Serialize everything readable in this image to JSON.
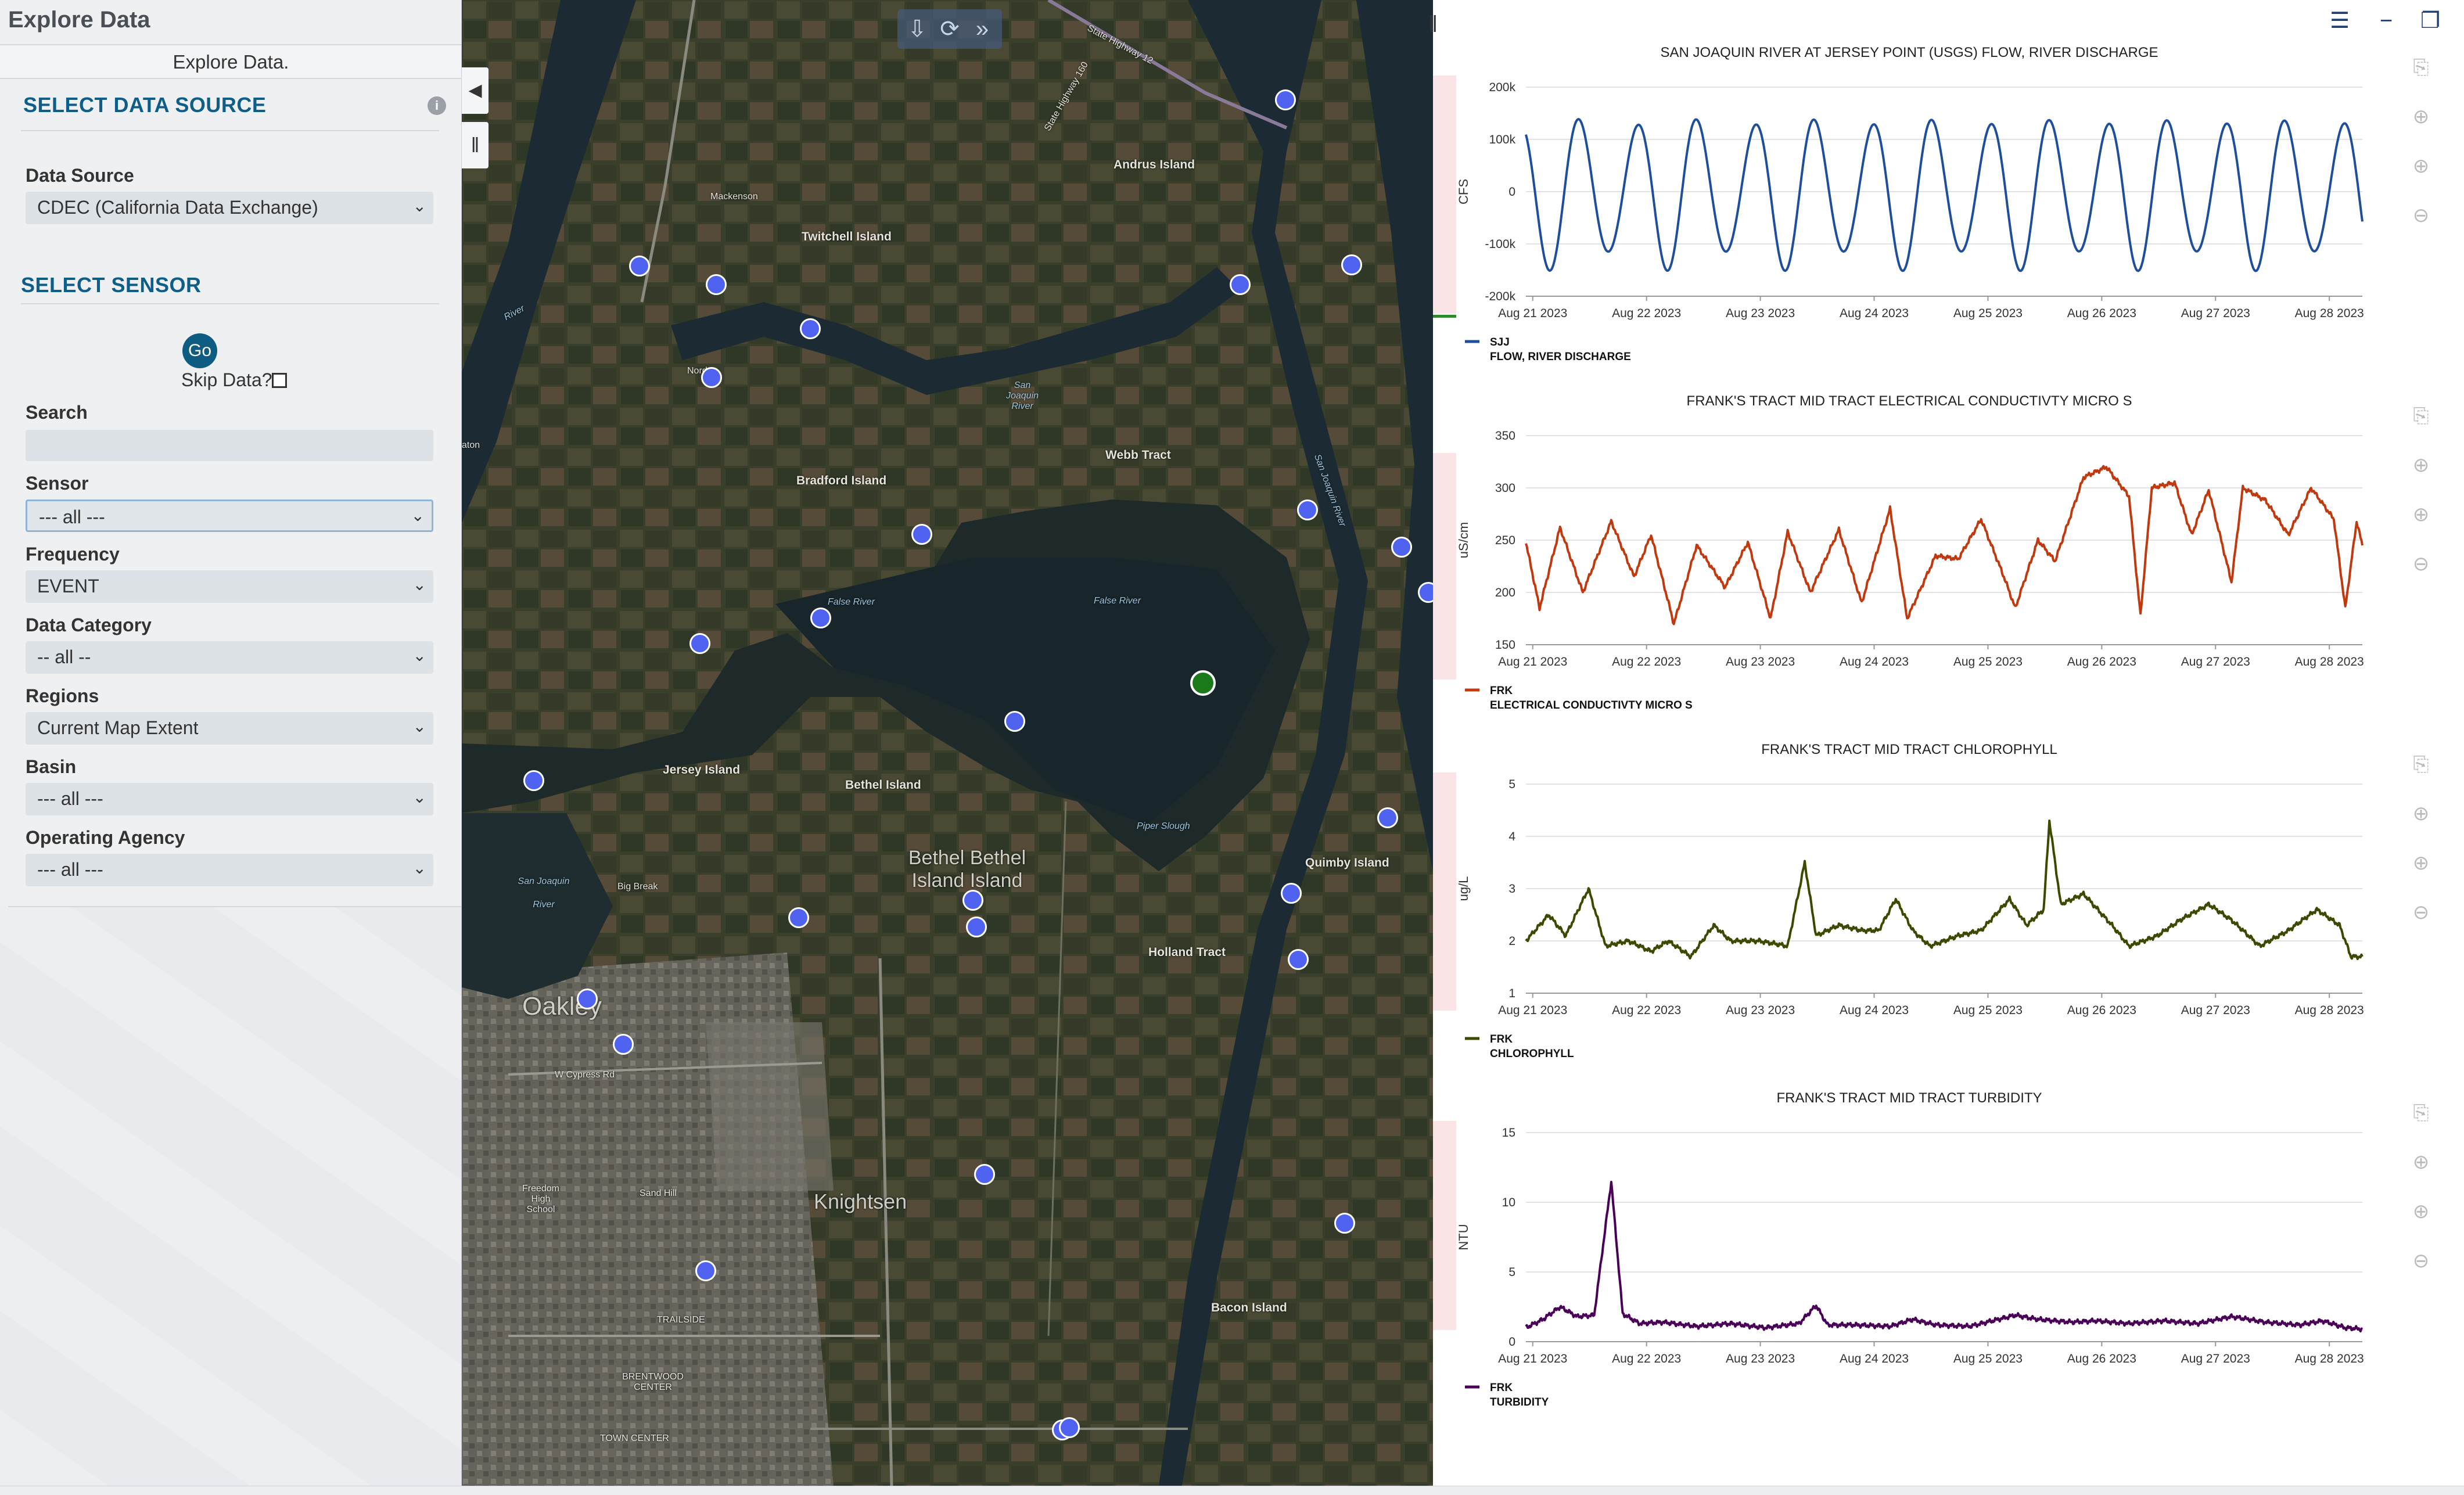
{
  "app": {
    "title": "Explore Data",
    "subtitle": "Explore Data."
  },
  "left_panel": {
    "data_source_section": "SELECT DATA SOURCE",
    "data_source_label": "Data Source",
    "data_source_value": "CDEC (California Data Exchange)",
    "sensor_section": "SELECT SENSOR",
    "go_label": "Go",
    "skip_label": "Skip Data?",
    "search_label": "Search",
    "search_value": "",
    "sensor_label": "Sensor",
    "sensor_value": "--- all ---",
    "frequency_label": "Frequency",
    "frequency_value": "EVENT",
    "data_category_label": "Data Category",
    "data_category_value": "-- all --",
    "regions_label": "Regions",
    "regions_value": "Current Map Extent",
    "basin_label": "Basin",
    "basin_value": "--- all ---",
    "agency_label": "Operating Agency",
    "agency_value": "--- all ---"
  },
  "map": {
    "toolbar": [
      "download-icon",
      "refresh-icon",
      "expand-icon"
    ],
    "labels": {
      "andrus": "Andrus Island",
      "twitchell": "Twitchell Island",
      "mackenson": "Mackenson",
      "webb": "Webb Tract",
      "bradford": "Bradford Island",
      "false_river": "False River",
      "false_river2": "False River",
      "jersey": "Jersey Island",
      "bethel": "Bethel Island",
      "bethel_town": "Bethel Bethel Island Island",
      "big_break": "Big Break",
      "piper": "Piper Slough",
      "quimby": "Quimby Island",
      "holland": "Holland Tract",
      "oakley": "Oakley",
      "knightsen": "Knightsen",
      "bacon": "Bacon Island",
      "sand_hill": "Sand Hill",
      "sj_river_left": "San Joaquin River",
      "sj_river_top": "San Joaquin River",
      "sj_river_right": "San Joaquin River",
      "state_hwy_12": "State Highway 12",
      "state_hwy_160": "State Highway 160",
      "freedom_high": "Freedom High School",
      "trailside": "TRAILSIDE",
      "brentwood": "BRENTWOOD CENTER",
      "towncenter": "TOWN CENTER",
      "cypress": "W Cypress Rd",
      "river": "River",
      "nord": "Nord",
      "ston": "aton"
    }
  },
  "colors": {
    "flow": "#1f4e9c",
    "ec": "#c0390f",
    "chl": "#3b4a00",
    "turb": "#4a0057",
    "station": "#4f63f0",
    "selected": "#1a7a1a"
  },
  "chart_data": [
    {
      "type": "line",
      "title": "SAN JOAQUIN RIVER AT JERSEY POINT (USGS) FLOW, RIVER DISCHARGE",
      "ylabel": "CFS",
      "x_ticks": [
        "Aug 21 2023",
        "Aug 22 2023",
        "Aug 23 2023",
        "Aug 24 2023",
        "Aug 25 2023",
        "Aug 26 2023",
        "Aug 27 2023",
        "Aug 28 2023"
      ],
      "y_ticks": [
        "200k",
        "100k",
        "0",
        "-100k",
        "-200k"
      ],
      "ylim": [
        -200000,
        200000
      ],
      "series": [
        {
          "name": "SJJ",
          "description": "FLOW, RIVER DISCHARGE",
          "color": "#1f4e9c"
        }
      ],
      "pattern": {
        "kind": "tidal",
        "amplitude_max": 160000,
        "amplitude_min": 120000,
        "period_days": 0.517,
        "peaks_high_first": true
      },
      "x_range_days": [
        0,
        7.35
      ]
    },
    {
      "type": "line",
      "title": "FRANK'S TRACT MID TRACT ELECTRICAL CONDUCTIVTY MICRO S",
      "ylabel": "uS/cm",
      "x_ticks": [
        "Aug 21 2023",
        "Aug 22 2023",
        "Aug 23 2023",
        "Aug 24 2023",
        "Aug 25 2023",
        "Aug 26 2023",
        "Aug 27 2023",
        "Aug 28 2023"
      ],
      "y_ticks": [
        "350",
        "300",
        "250",
        "200",
        "150"
      ],
      "ylim": [
        150,
        350
      ],
      "series": [
        {
          "name": "FRK",
          "description": "ELECTRICAL CONDUCTIVTY MICRO S",
          "color": "#c0390f"
        }
      ],
      "key_points": [
        [
          0,
          248
        ],
        [
          0.12,
          185
        ],
        [
          0.3,
          262
        ],
        [
          0.5,
          200
        ],
        [
          0.75,
          268
        ],
        [
          0.95,
          215
        ],
        [
          1.1,
          255
        ],
        [
          1.3,
          170
        ],
        [
          1.5,
          245
        ],
        [
          1.75,
          205
        ],
        [
          1.95,
          248
        ],
        [
          2.15,
          175
        ],
        [
          2.3,
          258
        ],
        [
          2.5,
          200
        ],
        [
          2.75,
          260
        ],
        [
          2.95,
          190
        ],
        [
          3.2,
          280
        ],
        [
          3.35,
          175
        ],
        [
          3.6,
          235
        ],
        [
          3.8,
          232
        ],
        [
          4.0,
          270
        ],
        [
          4.2,
          215
        ],
        [
          4.3,
          185
        ],
        [
          4.5,
          250
        ],
        [
          4.65,
          230
        ],
        [
          4.9,
          310
        ],
        [
          5.1,
          320
        ],
        [
          5.3,
          292
        ],
        [
          5.4,
          178
        ],
        [
          5.5,
          300
        ],
        [
          5.7,
          305
        ],
        [
          5.85,
          255
        ],
        [
          6.0,
          298
        ],
        [
          6.2,
          210
        ],
        [
          6.3,
          300
        ],
        [
          6.5,
          288
        ],
        [
          6.7,
          255
        ],
        [
          6.9,
          300
        ],
        [
          7.1,
          270
        ],
        [
          7.2,
          185
        ],
        [
          7.3,
          268
        ],
        [
          7.35,
          245
        ]
      ]
    },
    {
      "type": "line",
      "title": "FRANK'S TRACT MID TRACT CHLOROPHYLL",
      "ylabel": "ug/L",
      "x_ticks": [
        "Aug 21 2023",
        "Aug 22 2023",
        "Aug 23 2023",
        "Aug 24 2023",
        "Aug 25 2023",
        "Aug 26 2023",
        "Aug 27 2023",
        "Aug 28 2023"
      ],
      "y_ticks": [
        "5",
        "4",
        "3",
        "2",
        "1"
      ],
      "ylim": [
        1,
        5
      ],
      "series": [
        {
          "name": "FRK",
          "description": "CHLOROPHYLL",
          "color": "#3b4a00"
        }
      ],
      "key_points": [
        [
          0,
          2.0
        ],
        [
          0.2,
          2.5
        ],
        [
          0.35,
          2.1
        ],
        [
          0.55,
          3.0
        ],
        [
          0.7,
          1.9
        ],
        [
          0.9,
          2.0
        ],
        [
          1.1,
          1.8
        ],
        [
          1.25,
          2.0
        ],
        [
          1.45,
          1.7
        ],
        [
          1.65,
          2.3
        ],
        [
          1.8,
          2.0
        ],
        [
          2.05,
          2.0
        ],
        [
          2.3,
          1.9
        ],
        [
          2.45,
          3.5
        ],
        [
          2.55,
          2.1
        ],
        [
          2.75,
          2.3
        ],
        [
          2.95,
          2.2
        ],
        [
          3.1,
          2.2
        ],
        [
          3.25,
          2.8
        ],
        [
          3.4,
          2.2
        ],
        [
          3.55,
          1.9
        ],
        [
          3.8,
          2.1
        ],
        [
          4.0,
          2.2
        ],
        [
          4.25,
          2.8
        ],
        [
          4.4,
          2.3
        ],
        [
          4.55,
          2.6
        ],
        [
          4.6,
          4.3
        ],
        [
          4.7,
          2.7
        ],
        [
          4.9,
          2.9
        ],
        [
          5.15,
          2.3
        ],
        [
          5.3,
          1.9
        ],
        [
          5.55,
          2.1
        ],
        [
          5.75,
          2.4
        ],
        [
          6.0,
          2.7
        ],
        [
          6.2,
          2.4
        ],
        [
          6.45,
          1.9
        ],
        [
          6.7,
          2.2
        ],
        [
          6.95,
          2.6
        ],
        [
          7.15,
          2.3
        ],
        [
          7.25,
          1.7
        ],
        [
          7.35,
          1.7
        ]
      ]
    },
    {
      "type": "line",
      "title": "FRANK'S TRACT MID TRACT TURBIDITY",
      "ylabel": "NTU",
      "x_ticks": [
        "Aug 21 2023",
        "Aug 22 2023",
        "Aug 23 2023",
        "Aug 24 2023",
        "Aug 25 2023",
        "Aug 26 2023",
        "Aug 27 2023",
        "Aug 28 2023"
      ],
      "y_ticks": [
        "15",
        "10",
        "5",
        "0"
      ],
      "ylim": [
        0,
        15
      ],
      "series": [
        {
          "name": "FRK",
          "description": "TURBIDITY",
          "color": "#4a0057"
        }
      ],
      "key_points": [
        [
          0,
          1.0
        ],
        [
          0.15,
          1.6
        ],
        [
          0.3,
          2.5
        ],
        [
          0.45,
          1.8
        ],
        [
          0.6,
          1.9
        ],
        [
          0.75,
          11.5
        ],
        [
          0.85,
          2.0
        ],
        [
          1.0,
          1.3
        ],
        [
          1.2,
          1.4
        ],
        [
          1.5,
          1.1
        ],
        [
          1.8,
          1.3
        ],
        [
          2.1,
          1.0
        ],
        [
          2.4,
          1.3
        ],
        [
          2.55,
          2.6
        ],
        [
          2.65,
          1.2
        ],
        [
          2.9,
          1.2
        ],
        [
          3.2,
          1.1
        ],
        [
          3.4,
          1.6
        ],
        [
          3.6,
          1.2
        ],
        [
          3.9,
          1.1
        ],
        [
          4.1,
          1.5
        ],
        [
          4.3,
          1.9
        ],
        [
          4.5,
          1.6
        ],
        [
          4.8,
          1.4
        ],
        [
          5.0,
          1.5
        ],
        [
          5.3,
          1.3
        ],
        [
          5.6,
          1.5
        ],
        [
          5.9,
          1.3
        ],
        [
          6.2,
          1.8
        ],
        [
          6.5,
          1.4
        ],
        [
          6.8,
          1.2
        ],
        [
          7.0,
          1.5
        ],
        [
          7.2,
          1.0
        ],
        [
          7.35,
          0.9
        ]
      ]
    }
  ]
}
